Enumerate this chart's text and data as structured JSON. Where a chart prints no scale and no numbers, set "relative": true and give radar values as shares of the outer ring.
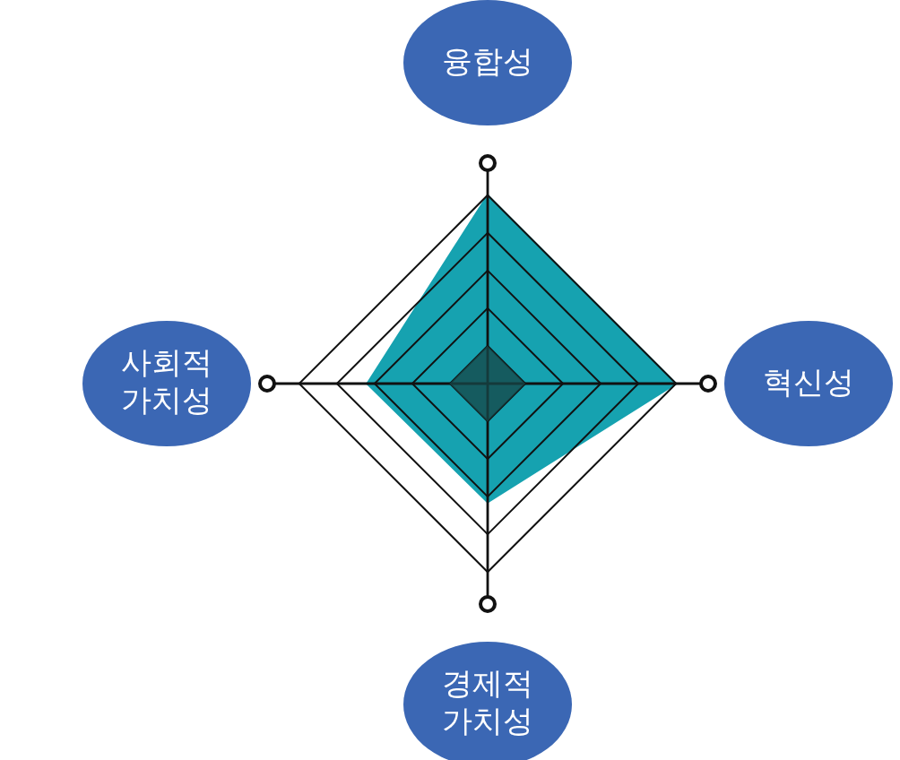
{
  "chart_data": {
    "type": "radar",
    "categories": [
      "융합성",
      "혁신성",
      "경제적 가치성",
      "사회적 가치성"
    ],
    "relative": true,
    "grid": true,
    "series": [
      {
        "color": "#16a2b0",
        "values": [
          1,
          1,
          0.63,
          0.64
        ]
      }
    ]
  }
}
